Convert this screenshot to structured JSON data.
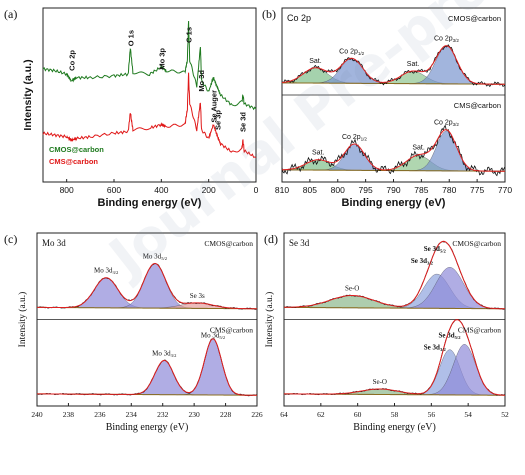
{
  "watermark": "Journal Pre-proofs",
  "panels": [
    {
      "id": "a",
      "label": "(a)",
      "xlabel": "Binding energy (eV)",
      "ylabel": "Intensity (a.u.)",
      "xlim": [
        900,
        0
      ],
      "xticks": [
        800,
        600,
        400,
        200,
        0
      ],
      "peak_labels": [
        {
          "text": "Co 2p",
          "x": 780
        },
        {
          "text": "O 1s",
          "x": 531
        },
        {
          "text": "Mo 3p",
          "x": 400
        },
        {
          "text": "C 1s",
          "x": 285
        },
        {
          "text": "Mo 3d",
          "x": 232
        },
        {
          "text": "Se Auger",
          "x": 180
        },
        {
          "text": "Se 3p",
          "x": 162
        },
        {
          "text": "Se 3d",
          "x": 56
        }
      ],
      "legend": [
        {
          "text": "CMOS@carbon",
          "color": "#1f7a1f"
        },
        {
          "text": "CMS@carbon",
          "color": "#e01818"
        }
      ]
    },
    {
      "id": "b",
      "label": "(b)",
      "title": "Co 2p",
      "xlabel": "Binding energy (eV)",
      "xlim": [
        810,
        770
      ],
      "xticks": [
        810,
        805,
        800,
        795,
        790,
        785,
        780,
        775,
        770
      ],
      "sample_labels": [
        "CMOS@carbon",
        "CMS@carbon"
      ],
      "peak_labels": [
        "Sat.",
        "Co 2p1/2",
        "Sat.",
        "Co 2p3/2"
      ]
    },
    {
      "id": "c",
      "label": "(c)",
      "title": "Mo 3d",
      "xlabel": "Binding energy (eV)",
      "ylabel": "Intensity (a.u.)",
      "xlim": [
        240,
        226
      ],
      "xticks": [
        240,
        238,
        236,
        234,
        232,
        230,
        228,
        226
      ],
      "sample_labels": [
        "CMOS@carbon",
        "CMS@carbon"
      ],
      "peak_labels": [
        "Mo 3d3/2",
        "Mo 3d5/2",
        "Se 3s"
      ]
    },
    {
      "id": "d",
      "label": "(d)",
      "title": "Se 3d",
      "xlabel": "Binding energy (eV)",
      "ylabel": "Intensity (a.u.)",
      "xlim": [
        64,
        52
      ],
      "xticks": [
        64,
        62,
        60,
        58,
        56,
        54,
        52
      ],
      "sample_labels": [
        "CMOS@carbon",
        "CMS@carbon"
      ],
      "peak_labels": [
        "Se-O",
        "Se 3d5/2",
        "Se 3d3/2"
      ]
    }
  ],
  "chart_data": [
    {
      "type": "line",
      "panel": "a",
      "xlabel": "Binding energy (eV)",
      "ylabel": "Intensity (a.u.)",
      "xlim": [
        900,
        0
      ],
      "series": [
        {
          "name": "CMOS@carbon",
          "color": "#1f7a1f",
          "x": [
            900,
            850,
            800,
            780,
            760,
            700,
            600,
            540,
            531,
            520,
            450,
            400,
            380,
            300,
            290,
            285,
            280,
            250,
            235,
            230,
            200,
            180,
            165,
            150,
            100,
            60,
            55,
            50,
            0
          ],
          "y": [
            0.65,
            0.64,
            0.62,
            0.58,
            0.6,
            0.6,
            0.61,
            0.62,
            0.77,
            0.63,
            0.62,
            0.66,
            0.64,
            0.63,
            0.7,
            0.92,
            0.7,
            0.55,
            0.78,
            0.58,
            0.52,
            0.6,
            0.55,
            0.5,
            0.44,
            0.46,
            0.5,
            0.45,
            0.42
          ]
        },
        {
          "name": "CMS@carbon",
          "color": "#e01818",
          "x": [
            900,
            850,
            800,
            780,
            760,
            700,
            600,
            540,
            531,
            520,
            450,
            400,
            380,
            300,
            290,
            285,
            280,
            250,
            235,
            230,
            200,
            180,
            165,
            150,
            100,
            60,
            55,
            50,
            0
          ],
          "y": [
            0.28,
            0.27,
            0.26,
            0.24,
            0.25,
            0.26,
            0.28,
            0.29,
            0.4,
            0.3,
            0.31,
            0.33,
            0.32,
            0.33,
            0.42,
            0.62,
            0.45,
            0.3,
            0.46,
            0.3,
            0.25,
            0.33,
            0.27,
            0.22,
            0.17,
            0.19,
            0.24,
            0.18,
            0.14
          ]
        }
      ]
    },
    {
      "type": "line",
      "panel": "b",
      "title": "Co 2p",
      "xlabel": "Binding energy (eV)",
      "xlim": [
        810,
        770
      ],
      "series": [
        {
          "name": "CMOS@carbon",
          "peaks": [
            {
              "label": "Sat.",
              "center": 804,
              "height": 0.22,
              "width": 2.2
            },
            {
              "label": "Co 2p1/2",
              "center": 797.5,
              "height": 0.36,
              "width": 2.0
            },
            {
              "label": "Sat.",
              "center": 786.5,
              "height": 0.18,
              "width": 2.2
            },
            {
              "label": "Co 2p3/2",
              "center": 780.5,
              "height": 0.55,
              "width": 1.9
            }
          ]
        },
        {
          "name": "CMS@carbon",
          "peaks": [
            {
              "label": "Sat.",
              "center": 803.5,
              "height": 0.15,
              "width": 2.2
            },
            {
              "label": "Co 2p1/2",
              "center": 797.0,
              "height": 0.38,
              "width": 1.8
            },
            {
              "label": "Sat.",
              "center": 785.5,
              "height": 0.22,
              "width": 2.2
            },
            {
              "label": "Co 2p3/2",
              "center": 780.5,
              "height": 0.58,
              "width": 1.8
            }
          ]
        }
      ]
    },
    {
      "type": "line",
      "panel": "c",
      "title": "Mo 3d",
      "xlabel": "Binding energy (eV)",
      "ylabel": "Intensity (a.u.)",
      "xlim": [
        240,
        226
      ],
      "series": [
        {
          "name": "CMOS@carbon",
          "peaks": [
            {
              "label": "Mo 3d3/2",
              "center": 235.6,
              "height": 0.44,
              "width": 0.75
            },
            {
              "label": "Mo 3d5/2",
              "center": 232.5,
              "height": 0.65,
              "width": 0.7
            },
            {
              "label": "Se 3s",
              "center": 229.8,
              "height": 0.08,
              "width": 1.0
            }
          ]
        },
        {
          "name": "CMS@carbon",
          "peaks": [
            {
              "label": "Mo 3d3/2",
              "center": 231.9,
              "height": 0.5,
              "width": 0.6
            },
            {
              "label": "Mo 3d5/2",
              "center": 228.8,
              "height": 0.82,
              "width": 0.55
            }
          ]
        }
      ]
    },
    {
      "type": "line",
      "panel": "d",
      "title": "Se 3d",
      "xlabel": "Binding energy (eV)",
      "ylabel": "Intensity (a.u.)",
      "xlim": [
        64,
        52
      ],
      "series": [
        {
          "name": "CMOS@carbon",
          "peaks": [
            {
              "label": "Se-O",
              "center": 60.3,
              "height": 0.18,
              "width": 1.2
            },
            {
              "label": "Se 3d3/2",
              "center": 55.7,
              "height": 0.5,
              "width": 0.7
            },
            {
              "label": "Se 3d5/2",
              "center": 55.0,
              "height": 0.6,
              "width": 0.75
            }
          ]
        },
        {
          "name": "CMS@carbon",
          "peaks": [
            {
              "label": "Se-O",
              "center": 58.8,
              "height": 0.08,
              "width": 1.0
            },
            {
              "label": "Se 3d3/2",
              "center": 55.0,
              "height": 0.66,
              "width": 0.55
            },
            {
              "label": "Se 3d5/2",
              "center": 54.2,
              "height": 0.74,
              "width": 0.6
            }
          ]
        }
      ]
    }
  ]
}
